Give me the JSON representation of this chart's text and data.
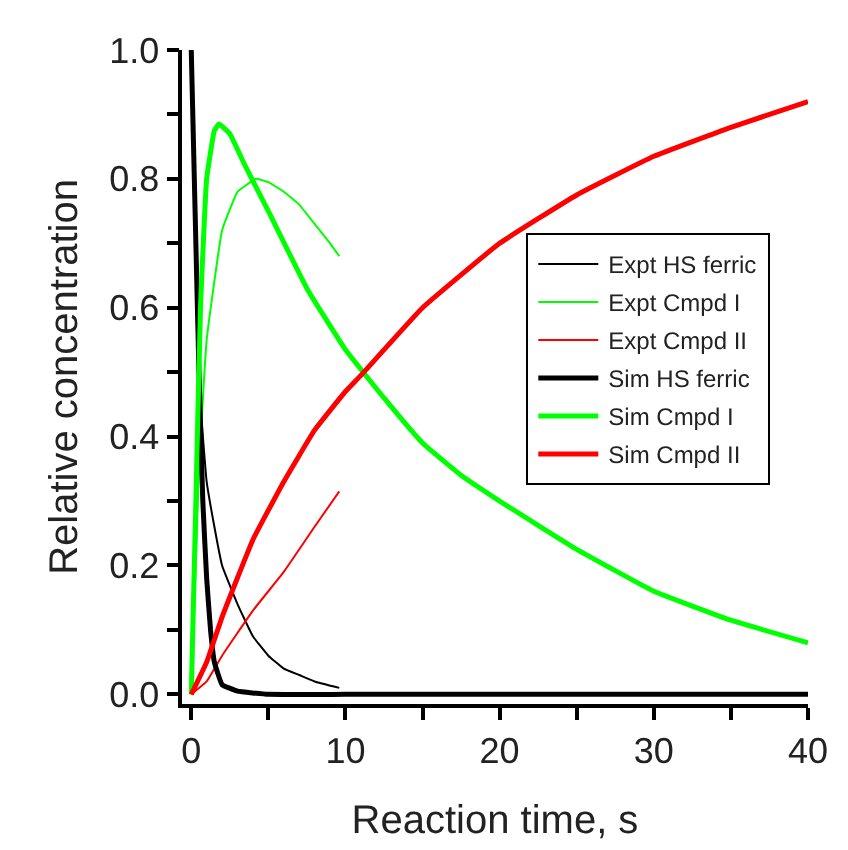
{
  "chart_data": {
    "type": "line",
    "xlabel": "Reaction time, s",
    "ylabel": "Relative concentration",
    "xlim": [
      -0.6,
      40
    ],
    "ylim": [
      -0.015,
      1.0
    ],
    "xticks": [
      0,
      {
        "value": 5,
        "label": null
      },
      10,
      {
        "value": 15,
        "label": null
      },
      20,
      {
        "value": 25,
        "label": null
      },
      30,
      {
        "value": 35,
        "label": null
      },
      40
    ],
    "yticks": [
      {
        "value": 0,
        "label": "0.0"
      },
      {
        "value": 0.1,
        "label": null
      },
      0.2,
      {
        "value": 0.3,
        "label": null
      },
      0.4,
      {
        "value": 0.5,
        "label": null
      },
      0.6,
      {
        "value": 0.7,
        "label": null
      },
      0.8,
      {
        "value": 0.9,
        "label": null
      },
      {
        "value": 1,
        "label": "1.0"
      }
    ],
    "legend": "right",
    "marker": "none",
    "line_style": "solid",
    "series": [
      {
        "name": "Expt HS ferric",
        "color": "#000000",
        "x": [
          0,
          0.3,
          0.6,
          1,
          1.5,
          2,
          3,
          4,
          5,
          6,
          7,
          8,
          9.6
        ],
        "values": [
          1.0,
          0.7,
          0.45,
          0.33,
          0.26,
          0.2,
          0.14,
          0.09,
          0.06,
          0.04,
          0.03,
          0.02,
          0.01
        ]
      },
      {
        "name": "Expt Cmpd I",
        "color": "#00ff00",
        "x": [
          0,
          0.5,
          1,
          2,
          3,
          4.2,
          5,
          6,
          7,
          8,
          9,
          9.6
        ],
        "values": [
          0,
          0.35,
          0.55,
          0.72,
          0.78,
          0.8,
          0.795,
          0.78,
          0.76,
          0.73,
          0.7,
          0.68
        ]
      },
      {
        "name": "Expt Cmpd II",
        "color": "#ff0000",
        "x": [
          0,
          1,
          2,
          4,
          6,
          8,
          9.6
        ],
        "values": [
          0,
          0.02,
          0.06,
          0.13,
          0.19,
          0.26,
          0.315
        ]
      },
      {
        "name": "Sim HS ferric",
        "color": "#000000",
        "x": [
          0,
          0.25,
          0.5,
          0.75,
          1,
          1.25,
          1.5,
          2,
          3,
          5,
          10,
          20,
          30,
          40
        ],
        "values": [
          1.0,
          0.75,
          0.5,
          0.3,
          0.18,
          0.1,
          0.05,
          0.015,
          0.005,
          0,
          0,
          0,
          0,
          0
        ]
      },
      {
        "name": "Sim Cmpd I",
        "color": "#00ff00",
        "x": [
          0,
          0.3,
          0.6,
          1,
          1.5,
          1.8,
          2.5,
          3.5,
          5,
          7.5,
          10,
          12.5,
          15,
          17.5,
          20,
          25,
          30,
          35,
          40
        ],
        "values": [
          0,
          0.3,
          0.6,
          0.8,
          0.875,
          0.885,
          0.87,
          0.82,
          0.75,
          0.63,
          0.535,
          0.46,
          0.39,
          0.34,
          0.3,
          0.225,
          0.16,
          0.115,
          0.08
        ]
      },
      {
        "name": "Sim Cmpd II",
        "color": "#ff0000",
        "x": [
          0,
          1,
          2,
          4,
          6,
          8,
          10,
          11,
          15,
          20,
          25,
          30,
          35,
          40
        ],
        "values": [
          0,
          0.05,
          0.12,
          0.24,
          0.33,
          0.41,
          0.47,
          0.495,
          0.6,
          0.7,
          0.775,
          0.835,
          0.88,
          0.92
        ]
      }
    ]
  }
}
